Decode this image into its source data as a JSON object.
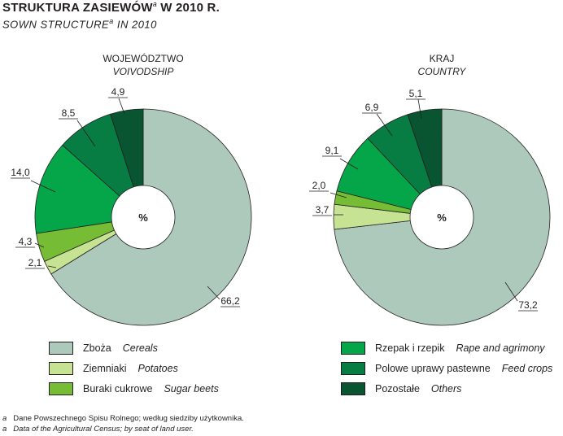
{
  "header": {
    "title_pl": "STRUKTURA ZASIEWÓW",
    "title_pl_suffix": " W 2010 R.",
    "title_en": "SOWN STRUCTURE",
    "title_en_suffix": " IN 2010",
    "footnote_mark": "a"
  },
  "chart_data": [
    {
      "type": "pie",
      "subtype": "donut",
      "title": "WOJEWÓDZTWO",
      "subtitle": "VOIVODSHIP",
      "center_label": "%",
      "categories": [
        "Zboża",
        "Ziemniaki",
        "Buraki cukrowe",
        "Rzepak i rzepik",
        "Polowe uprawy pastewne",
        "Pozostałe"
      ],
      "values": [
        66.2,
        2.1,
        4.3,
        14.0,
        8.5,
        4.9
      ],
      "labels": [
        "66,2",
        "2,1",
        "4,3",
        "14,0",
        "8,5",
        "4,9"
      ],
      "colors": [
        "#adc9bc",
        "#c6e393",
        "#76bc35",
        "#05a64a",
        "#077c43",
        "#0a5531"
      ]
    },
    {
      "type": "pie",
      "subtype": "donut",
      "title": "KRAJ",
      "subtitle": "COUNTRY",
      "center_label": "%",
      "categories": [
        "Zboża",
        "Ziemniaki",
        "Buraki cukrowe",
        "Rzepak i rzepik",
        "Polowe uprawy pastewne",
        "Pozostałe"
      ],
      "values": [
        73.2,
        3.7,
        2.0,
        9.1,
        6.9,
        5.1
      ],
      "labels": [
        "73,2",
        "3,7",
        "2,0",
        "9,1",
        "6,9",
        "5,1"
      ],
      "colors": [
        "#adc9bc",
        "#c6e393",
        "#76bc35",
        "#05a64a",
        "#077c43",
        "#0a5531"
      ]
    }
  ],
  "legend": [
    {
      "pl": "Zboża",
      "en": "Cereals",
      "color": "#adc9bc"
    },
    {
      "pl": "Ziemniaki",
      "en": "Potatoes",
      "color": "#c6e393"
    },
    {
      "pl": "Buraki cukrowe",
      "en": "Sugar beets",
      "color": "#76bc35"
    },
    {
      "pl": "Rzepak i rzepik",
      "en": "Rape and agrimony",
      "color": "#05a64a"
    },
    {
      "pl": "Polowe uprawy pastewne",
      "en": "Feed crops",
      "color": "#077c43"
    },
    {
      "pl": "Pozostałe",
      "en": "Others",
      "color": "#0a5531"
    }
  ],
  "footnotes": {
    "mark": "a",
    "pl": "Dane Powszechnego Spisu Rolnego; według siedziby użytkownika.",
    "en": "Data of the Agricultural Census; by seat of land user."
  }
}
